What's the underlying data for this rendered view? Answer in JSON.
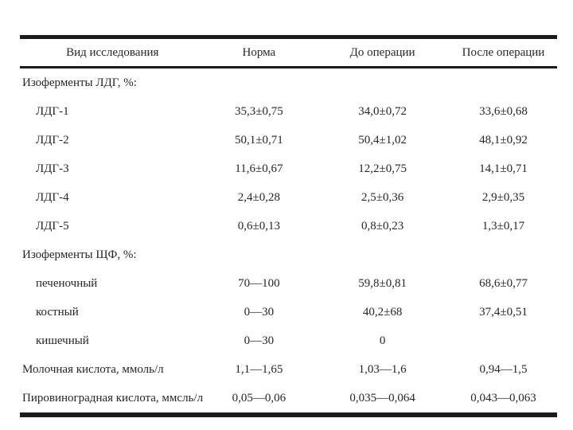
{
  "colors": {
    "background": "#ffffff",
    "rule": "#1b1b1b",
    "text": "#262626"
  },
  "table": {
    "headers": [
      "Вид исследования",
      "Норма",
      "До операции",
      "После операции"
    ],
    "rows": [
      {
        "label": "Изоферменты ЛДГ, %:",
        "norm": "",
        "before": "",
        "after": ""
      },
      {
        "label": "ЛДГ-1",
        "norm": "35,3±0,75",
        "before": "34,0±0,72",
        "after": "33,6±0,68"
      },
      {
        "label": "ЛДГ-2",
        "norm": "50,1±0,71",
        "before": "50,4±1,02",
        "after": "48,1±0,92"
      },
      {
        "label": "ЛДГ-3",
        "norm": "11,6±0,67",
        "before": "12,2±0,75",
        "after": "14,1±0,71"
      },
      {
        "label": "ЛДГ-4",
        "norm": "2,4±0,28",
        "before": "2,5±0,36",
        "after": "2,9±0,35"
      },
      {
        "label": "ЛДГ-5",
        "norm": "0,6±0,13",
        "before": "0,8±0,23",
        "after": "1,3±0,17"
      },
      {
        "label": "Изоферменты ЩФ, %:",
        "norm": "",
        "before": "",
        "after": ""
      },
      {
        "label": "печеночный",
        "norm": "70—100",
        "before": "59,8±0,81",
        "after": "68,6±0,77"
      },
      {
        "label": "костный",
        "norm": "0—30",
        "before": "40,2±68",
        "after": "37,4±0,51"
      },
      {
        "label": "кишечный",
        "norm": "0—30",
        "before": "0",
        "after": ""
      },
      {
        "label": "Молочная кислота, ммоль/л",
        "norm": "1,1—1,65",
        "before": "1,03—1,6",
        "after": "0,94—1,5"
      },
      {
        "label": "Пировиноградная кислота, ммсль/л",
        "norm": "0,05—0,06",
        "before": "0,035—0,064",
        "after": "0,043—0,063"
      }
    ]
  }
}
